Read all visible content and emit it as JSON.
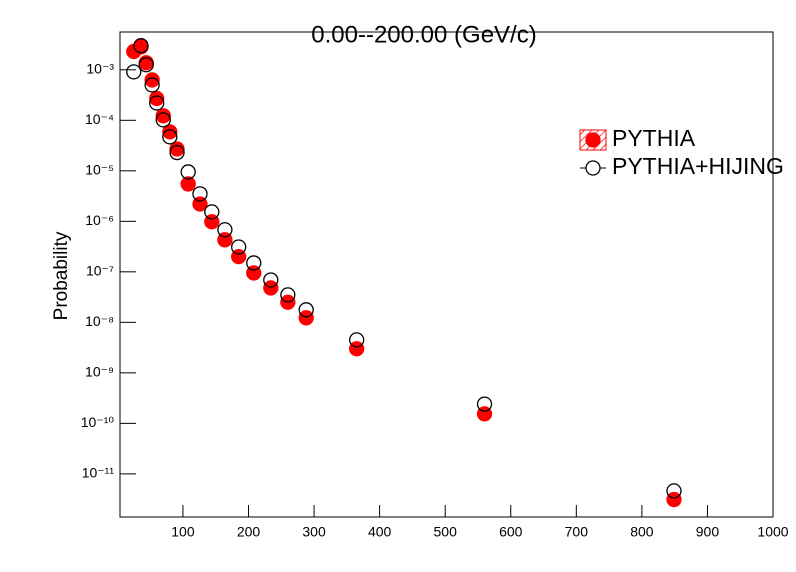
{
  "chart_data": {
    "type": "scatter",
    "title": "0.00--200.00 (GeV/c)",
    "y_label": "Probability",
    "log_y": true,
    "legend": "right",
    "x": [
      25,
      36,
      44,
      53,
      60,
      70,
      80,
      91,
      108,
      126,
      144,
      164,
      185,
      208,
      234,
      260,
      288,
      365,
      560,
      849
    ],
    "series": [
      {
        "name": "PYTHIA",
        "color": "#ff0000",
        "marker": "filled",
        "values": [
          0.0023,
          0.00285,
          0.00138,
          0.00063,
          0.00027,
          0.000123,
          5.9e-05,
          2.7e-05,
          5.5e-06,
          2.2e-06,
          9.8e-07,
          4.3e-07,
          2e-07,
          9.5e-08,
          4.8e-08,
          2.5e-08,
          1.23e-08,
          3e-09,
          1.54e-10,
          3.1e-12
        ]
      },
      {
        "name": "PYTHIA+HIJING",
        "color": "#000000",
        "marker": "open",
        "values": [
          0.00091,
          0.003,
          0.00126,
          0.0005,
          0.00022,
          0.000102,
          4.7e-05,
          2.3e-05,
          9.5e-06,
          3.5e-06,
          1.54e-06,
          6.8e-07,
          3.1e-07,
          1.5e-07,
          6.9e-08,
          3.5e-08,
          1.77e-08,
          4.5e-09,
          2.4e-10,
          4.6e-12
        ]
      }
    ],
    "xlim": [
      4,
      1000
    ],
    "xticks": [
      100,
      200,
      300,
      400,
      500,
      600,
      700,
      800,
      900,
      1000
    ],
    "ylim": [
      1.4e-12,
      0.0056
    ],
    "yticks": [
      {
        "value": 1e-11,
        "label": "10⁻¹¹"
      },
      {
        "value": 1e-10,
        "label": "10⁻¹⁰"
      },
      {
        "value": 1e-09,
        "label": "10⁻⁹"
      },
      {
        "value": 1e-08,
        "label": "10⁻⁸"
      },
      {
        "value": 1e-07,
        "label": "10⁻⁷"
      },
      {
        "value": 1e-06,
        "label": "10⁻⁶"
      },
      {
        "value": 1e-05,
        "label": "10⁻⁵"
      },
      {
        "value": 0.0001,
        "label": "10⁻⁴"
      },
      {
        "value": 0.001,
        "label": "10⁻³"
      }
    ]
  }
}
